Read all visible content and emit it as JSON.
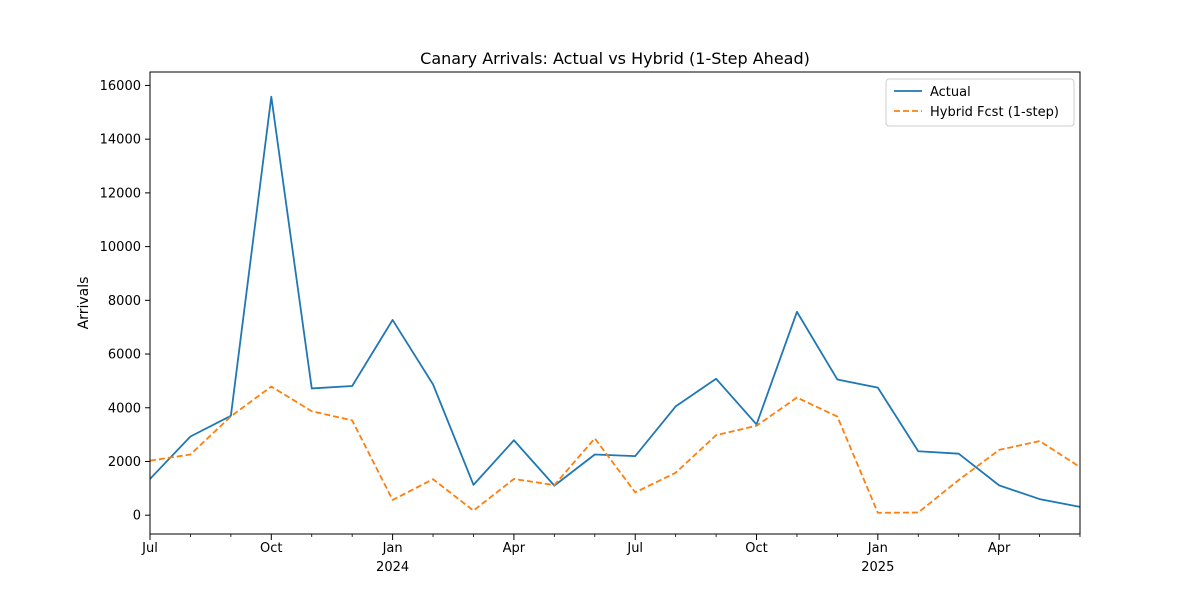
{
  "chart_data": {
    "type": "line",
    "title": "Canary Arrivals: Actual vs Hybrid (1-Step Ahead)",
    "xlabel": "",
    "ylabel": "Arrivals",
    "x": [
      "2023-07",
      "2023-08",
      "2023-09",
      "2023-10",
      "2023-11",
      "2023-12",
      "2024-01",
      "2024-02",
      "2024-03",
      "2024-04",
      "2024-05",
      "2024-06",
      "2024-07",
      "2024-08",
      "2024-09",
      "2024-10",
      "2024-11",
      "2024-12",
      "2025-01",
      "2025-02",
      "2025-03",
      "2025-04",
      "2025-05",
      "2025-06"
    ],
    "xlim": [
      "2023-07",
      "2025-06"
    ],
    "ylim": [
      -700,
      16500
    ],
    "yticks": [
      0,
      2000,
      4000,
      6000,
      8000,
      10000,
      12000,
      14000,
      16000
    ],
    "xticks_major": [
      {
        "x": "2023-07",
        "label": "Jul",
        "sublabel": ""
      },
      {
        "x": "2023-10",
        "label": "Oct",
        "sublabel": ""
      },
      {
        "x": "2024-01",
        "label": "Jan",
        "sublabel": "2024"
      },
      {
        "x": "2024-04",
        "label": "Apr",
        "sublabel": ""
      },
      {
        "x": "2024-07",
        "label": "Jul",
        "sublabel": ""
      },
      {
        "x": "2024-10",
        "label": "Oct",
        "sublabel": ""
      },
      {
        "x": "2025-01",
        "label": "Jan",
        "sublabel": "2025"
      },
      {
        "x": "2025-04",
        "label": "Apr",
        "sublabel": ""
      }
    ],
    "grid": false,
    "legend": "top-right",
    "series": [
      {
        "name": "Actual",
        "color": "#1f77b4",
        "style": "solid",
        "values": [
          1350,
          2930,
          3700,
          15580,
          4720,
          4810,
          7270,
          4870,
          1130,
          2790,
          1100,
          2260,
          2200,
          4050,
          5080,
          3380,
          7570,
          5050,
          4750,
          2380,
          2290,
          1110,
          600,
          310
        ]
      },
      {
        "name": "Hybrid Fcst (1-step)",
        "color": "#ff7f0e",
        "style": "dashed",
        "values": [
          2030,
          2260,
          3680,
          4790,
          3870,
          3530,
          570,
          1340,
          170,
          1350,
          1120,
          2860,
          850,
          1580,
          2980,
          3330,
          4380,
          3670,
          90,
          100,
          1310,
          2430,
          2760,
          1790
        ]
      }
    ]
  }
}
